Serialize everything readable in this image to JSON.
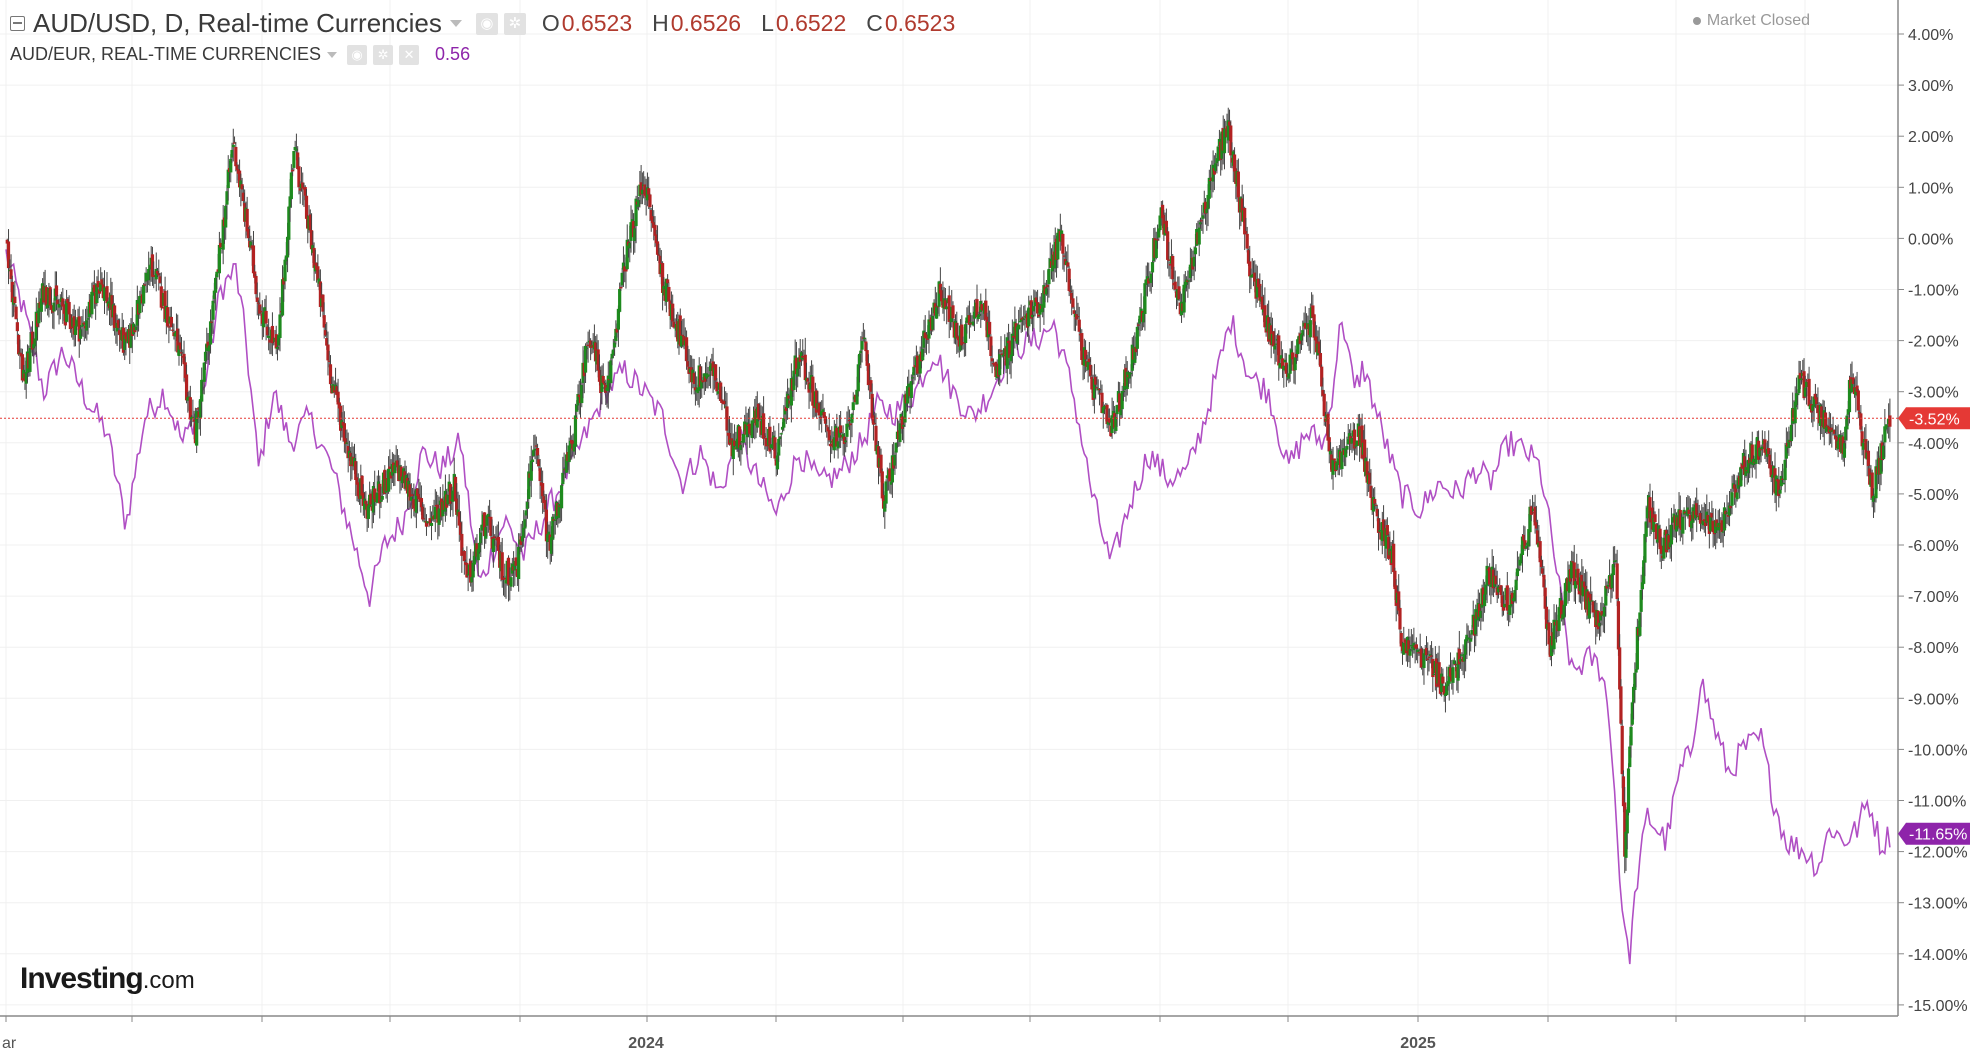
{
  "header": {
    "symbol_line": "AUD/USD, D, Real-time Currencies",
    "ohlc": [
      {
        "key": "O",
        "value": "0.6523"
      },
      {
        "key": "H",
        "value": "0.6526"
      },
      {
        "key": "L",
        "value": "0.6522"
      },
      {
        "key": "C",
        "value": "0.6523"
      }
    ],
    "secondary_line": "AUD/EUR, REAL-TIME CURRENCIES",
    "secondary_value": "0.56",
    "status": "Market Closed"
  },
  "brand": {
    "name": "Investing",
    "suffix": ".com"
  },
  "colors": {
    "up": "#1e8a1e",
    "down": "#b22222",
    "compare_line": "#b04fc4",
    "price_line": "#e53935",
    "last_main_badge": "#e53935",
    "last_compare_badge": "#8e24aa",
    "grid": "#f0f0f0"
  },
  "chart_data": {
    "type": "candlestick",
    "y_axis": {
      "unit": "%",
      "min": -15,
      "max": 4,
      "tick_labels": [
        "4.00%",
        "3.00%",
        "2.00%",
        "1.00%",
        "0.00%",
        "-1.00%",
        "-2.00%",
        "-3.00%",
        "-4.00%",
        "-5.00%",
        "-6.00%",
        "-7.00%",
        "-8.00%",
        "-9.00%",
        "-10.00%",
        "-11.00%",
        "-12.00%",
        "-13.00%",
        "-14.00%",
        "-15.00%"
      ]
    },
    "x_axis": {
      "labels": [
        "ar",
        "2024",
        "2025"
      ]
    },
    "last_values": {
      "main": "-3.52%",
      "compare": "-11.65%"
    },
    "series": [
      {
        "name": "AUD/USD",
        "kind": "candlestick",
        "anchor_points": [
          [
            0,
            0
          ],
          [
            14,
            -2.8
          ],
          [
            30,
            -1.0
          ],
          [
            60,
            -1.8
          ],
          [
            75,
            -0.8
          ],
          [
            95,
            -2.2
          ],
          [
            115,
            -0.5
          ],
          [
            135,
            -2.0
          ],
          [
            150,
            -3.8
          ],
          [
            165,
            -1.2
          ],
          [
            180,
            1.9
          ],
          [
            200,
            -1.2
          ],
          [
            215,
            -2.3
          ],
          [
            228,
            1.8
          ],
          [
            245,
            -0.5
          ],
          [
            258,
            -2.8
          ],
          [
            270,
            -4.0
          ],
          [
            285,
            -5.3
          ],
          [
            310,
            -4.5
          ],
          [
            335,
            -5.6
          ],
          [
            355,
            -4.8
          ],
          [
            365,
            -6.8
          ],
          [
            380,
            -5.5
          ],
          [
            395,
            -6.6
          ],
          [
            405,
            -6.4
          ],
          [
            418,
            -4.0
          ],
          [
            430,
            -6.0
          ],
          [
            450,
            -3.8
          ],
          [
            462,
            -1.8
          ],
          [
            475,
            -3.2
          ],
          [
            490,
            -0.5
          ],
          [
            505,
            1.2
          ],
          [
            520,
            -0.8
          ],
          [
            545,
            -2.8
          ],
          [
            560,
            -2.6
          ],
          [
            575,
            -4.0
          ],
          [
            595,
            -3.5
          ],
          [
            610,
            -4.2
          ],
          [
            628,
            -2.2
          ],
          [
            650,
            -3.8
          ],
          [
            665,
            -4.0
          ],
          [
            680,
            -2.0
          ],
          [
            695,
            -5.2
          ],
          [
            710,
            -3.5
          ],
          [
            725,
            -2.2
          ],
          [
            740,
            -1.0
          ],
          [
            755,
            -2.0
          ],
          [
            772,
            -1.2
          ],
          [
            785,
            -2.6
          ],
          [
            800,
            -1.8
          ],
          [
            820,
            -1.2
          ],
          [
            835,
            0.1
          ],
          [
            855,
            -2.5
          ],
          [
            875,
            -3.8
          ],
          [
            895,
            -2.0
          ],
          [
            915,
            0.5
          ],
          [
            930,
            -1.5
          ],
          [
            945,
            0.2
          ],
          [
            958,
            1.5
          ],
          [
            968,
            2.2
          ],
          [
            985,
            -0.5
          ],
          [
            1000,
            -1.8
          ],
          [
            1015,
            -2.6
          ],
          [
            1035,
            -1.5
          ],
          [
            1050,
            -4.5
          ],
          [
            1072,
            -3.8
          ],
          [
            1082,
            -5.2
          ],
          [
            1098,
            -6.2
          ],
          [
            1105,
            -7.9
          ],
          [
            1125,
            -8.2
          ],
          [
            1140,
            -8.8
          ],
          [
            1160,
            -7.8
          ],
          [
            1175,
            -6.5
          ],
          [
            1190,
            -7.2
          ],
          [
            1210,
            -5.2
          ],
          [
            1222,
            -8.0
          ],
          [
            1240,
            -6.5
          ],
          [
            1260,
            -7.5
          ],
          [
            1275,
            -6.5
          ],
          [
            1282,
            -11.9
          ],
          [
            1290,
            -8.5
          ],
          [
            1300,
            -5.2
          ],
          [
            1312,
            -6.0
          ],
          [
            1325,
            -5.5
          ],
          [
            1340,
            -5.3
          ],
          [
            1355,
            -5.8
          ],
          [
            1375,
            -4.5
          ],
          [
            1390,
            -4.0
          ],
          [
            1405,
            -5.0
          ],
          [
            1420,
            -2.8
          ],
          [
            1440,
            -3.5
          ],
          [
            1455,
            -4.0
          ],
          [
            1462,
            -2.6
          ],
          [
            1478,
            -5.0
          ],
          [
            1492,
            -3.5
          ]
        ]
      },
      {
        "name": "AUD/EUR",
        "kind": "line",
        "anchor_points": [
          [
            0,
            -0.3
          ],
          [
            15,
            -1.5
          ],
          [
            30,
            -3.0
          ],
          [
            45,
            -2.2
          ],
          [
            65,
            -3.2
          ],
          [
            80,
            -3.8
          ],
          [
            95,
            -5.6
          ],
          [
            110,
            -3.5
          ],
          [
            125,
            -3.0
          ],
          [
            140,
            -4.0
          ],
          [
            155,
            -3.2
          ],
          [
            170,
            -1.0
          ],
          [
            182,
            -0.6
          ],
          [
            190,
            -2.0
          ],
          [
            200,
            -4.5
          ],
          [
            212,
            -3.0
          ],
          [
            225,
            -4.0
          ],
          [
            240,
            -3.5
          ],
          [
            258,
            -4.5
          ],
          [
            270,
            -5.5
          ],
          [
            288,
            -7.0
          ],
          [
            300,
            -6.0
          ],
          [
            315,
            -5.5
          ],
          [
            330,
            -4.2
          ],
          [
            345,
            -4.5
          ],
          [
            360,
            -4.0
          ],
          [
            375,
            -6.8
          ],
          [
            395,
            -5.5
          ],
          [
            410,
            -6.2
          ],
          [
            425,
            -5.5
          ],
          [
            440,
            -4.8
          ],
          [
            460,
            -3.8
          ],
          [
            475,
            -3.0
          ],
          [
            490,
            -2.6
          ],
          [
            505,
            -3.0
          ],
          [
            520,
            -3.5
          ],
          [
            535,
            -4.8
          ],
          [
            550,
            -4.2
          ],
          [
            565,
            -5.0
          ],
          [
            580,
            -3.9
          ],
          [
            595,
            -4.7
          ],
          [
            610,
            -5.4
          ],
          [
            628,
            -4.2
          ],
          [
            645,
            -4.8
          ],
          [
            660,
            -4.6
          ],
          [
            678,
            -4.0
          ],
          [
            690,
            -3.3
          ],
          [
            705,
            -3.4
          ],
          [
            720,
            -3.0
          ],
          [
            735,
            -2.2
          ],
          [
            750,
            -3.0
          ],
          [
            765,
            -3.5
          ],
          [
            780,
            -3.0
          ],
          [
            795,
            -2.2
          ],
          [
            815,
            -2.0
          ],
          [
            830,
            -1.7
          ],
          [
            845,
            -3.0
          ],
          [
            860,
            -5.0
          ],
          [
            875,
            -6.4
          ],
          [
            890,
            -5.2
          ],
          [
            905,
            -4.2
          ],
          [
            920,
            -4.7
          ],
          [
            935,
            -4.6
          ],
          [
            950,
            -3.5
          ],
          [
            970,
            -1.6
          ],
          [
            985,
            -2.7
          ],
          [
            1000,
            -3.0
          ],
          [
            1015,
            -4.5
          ],
          [
            1030,
            -3.8
          ],
          [
            1045,
            -4.0
          ],
          [
            1058,
            -1.5
          ],
          [
            1068,
            -3.0
          ],
          [
            1075,
            -2.5
          ],
          [
            1090,
            -3.8
          ],
          [
            1105,
            -5.0
          ],
          [
            1120,
            -5.3
          ],
          [
            1135,
            -4.8
          ],
          [
            1150,
            -5.0
          ],
          [
            1165,
            -4.5
          ],
          [
            1175,
            -4.8
          ],
          [
            1190,
            -4.0
          ],
          [
            1205,
            -4.2
          ],
          [
            1215,
            -4.5
          ],
          [
            1225,
            -6.0
          ],
          [
            1240,
            -8.5
          ],
          [
            1255,
            -8.2
          ],
          [
            1265,
            -8.5
          ],
          [
            1272,
            -10.0
          ],
          [
            1278,
            -12.5
          ],
          [
            1285,
            -14.2
          ],
          [
            1292,
            -12.5
          ],
          [
            1300,
            -11.3
          ],
          [
            1315,
            -11.8
          ],
          [
            1325,
            -10.5
          ],
          [
            1335,
            -10.0
          ],
          [
            1342,
            -8.6
          ],
          [
            1352,
            -9.5
          ],
          [
            1365,
            -10.5
          ],
          [
            1375,
            -10.0
          ],
          [
            1390,
            -9.8
          ],
          [
            1400,
            -11.0
          ],
          [
            1410,
            -11.8
          ],
          [
            1425,
            -12.0
          ],
          [
            1435,
            -12.3
          ],
          [
            1445,
            -11.5
          ],
          [
            1455,
            -11.8
          ],
          [
            1465,
            -11.6
          ],
          [
            1475,
            -11.0
          ],
          [
            1485,
            -11.9
          ],
          [
            1492,
            -11.65
          ]
        ]
      }
    ]
  }
}
